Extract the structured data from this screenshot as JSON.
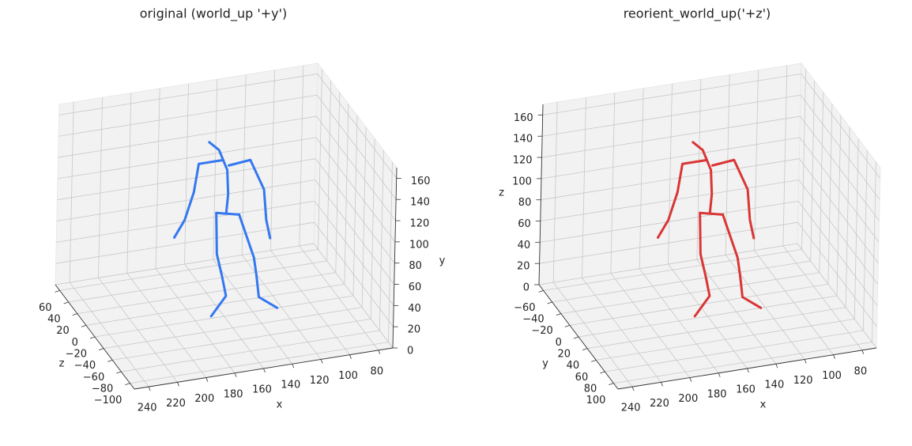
{
  "chart_data": [
    {
      "type": "line3d",
      "title": "original (world_up '+y')",
      "xlabel": "x",
      "ylabel": "y",
      "zlabel": "z",
      "vertical_axis": "y",
      "depth_axis": "z",
      "vertical_ticks_side": "right",
      "color": "#3478f0",
      "xlim": [
        250,
        70
      ],
      "ylim": [
        0,
        170
      ],
      "zlim": [
        -110,
        70
      ],
      "xticks": [
        240,
        220,
        200,
        180,
        160,
        140,
        120,
        100,
        80
      ],
      "yticks": [
        0,
        20,
        40,
        60,
        80,
        100,
        120,
        140,
        160
      ],
      "zticks": [
        {
          "value": -100,
          "label": "−100"
        },
        {
          "value": -80,
          "label": "−80"
        },
        {
          "value": -60,
          "label": "−60"
        },
        {
          "value": -40,
          "label": "−40"
        },
        {
          "value": -20,
          "label": "−20"
        },
        0,
        20,
        40,
        60
      ],
      "segments": [
        {
          "x": [
            173,
            166,
            163,
            160,
            159,
            160
          ],
          "y": [
            167,
            158,
            148,
            138,
            115,
            98
          ],
          "z": [
            -20,
            -20,
            -20,
            -20,
            -20,
            -20
          ]
        },
        {
          "x": [
            163,
            180,
            183,
            189,
            196
          ],
          "y": [
            148,
            148,
            122,
            97,
            82
          ],
          "z": [
            -20,
            -20,
            -20,
            -20,
            -20
          ]
        },
        {
          "x": [
            159,
            144,
            134,
            132,
            129
          ],
          "y": [
            142,
            144,
            114,
            85,
            67
          ],
          "z": [
            -20,
            -20,
            -20,
            -20,
            -20
          ]
        },
        {
          "x": [
            167,
            151
          ],
          "y": [
            99,
            94
          ],
          "z": [
            -20,
            -20
          ]
        },
        {
          "x": [
            167,
            166,
            162,
            159,
            169
          ],
          "y": [
            99,
            60,
            38,
            19,
            2
          ],
          "z": [
            -20,
            -20,
            -20,
            -20,
            -20
          ]
        },
        {
          "x": [
            151,
            140,
            138,
            136,
            123
          ],
          "y": [
            94,
            51,
            34,
            13,
            0
          ],
          "z": [
            -20,
            -20,
            -20,
            -20,
            -20
          ]
        }
      ]
    },
    {
      "type": "line3d",
      "title": "reorient_world_up('+z')",
      "xlabel": "x",
      "ylabel": "y",
      "zlabel": "z",
      "vertical_axis": "z",
      "depth_axis": "y",
      "vertical_ticks_side": "left",
      "color": "#d93636",
      "xlim": [
        250,
        70
      ],
      "ylim": [
        110,
        -70
      ],
      "zlim": [
        0,
        170
      ],
      "xticks": [
        240,
        220,
        200,
        180,
        160,
        140,
        120,
        100,
        80
      ],
      "yticks": [
        {
          "value": -60,
          "label": "−60"
        },
        {
          "value": -40,
          "label": "−40"
        },
        {
          "value": -20,
          "label": "−20"
        },
        0,
        20,
        40,
        60,
        80,
        100
      ],
      "zticks": [
        0,
        20,
        40,
        60,
        80,
        100,
        120,
        140,
        160
      ],
      "segments": [
        {
          "x": [
            173,
            166,
            163,
            160,
            159,
            160
          ],
          "y": [
            20,
            20,
            20,
            20,
            20,
            20
          ],
          "z": [
            167,
            158,
            148,
            138,
            115,
            98
          ]
        },
        {
          "x": [
            163,
            180,
            183,
            189,
            196
          ],
          "y": [
            20,
            20,
            20,
            20,
            20
          ],
          "z": [
            148,
            148,
            122,
            97,
            82
          ]
        },
        {
          "x": [
            159,
            144,
            134,
            132,
            129
          ],
          "y": [
            20,
            20,
            20,
            20,
            20
          ],
          "z": [
            142,
            144,
            114,
            85,
            67
          ]
        },
        {
          "x": [
            167,
            151
          ],
          "y": [
            20,
            20
          ],
          "z": [
            99,
            94
          ]
        },
        {
          "x": [
            167,
            166,
            162,
            159,
            169
          ],
          "y": [
            20,
            20,
            20,
            20,
            20
          ],
          "z": [
            99,
            60,
            38,
            19,
            2
          ]
        },
        {
          "x": [
            151,
            140,
            138,
            136,
            123
          ],
          "y": [
            20,
            20,
            20,
            20,
            20
          ],
          "z": [
            94,
            51,
            34,
            13,
            0
          ]
        }
      ]
    }
  ]
}
